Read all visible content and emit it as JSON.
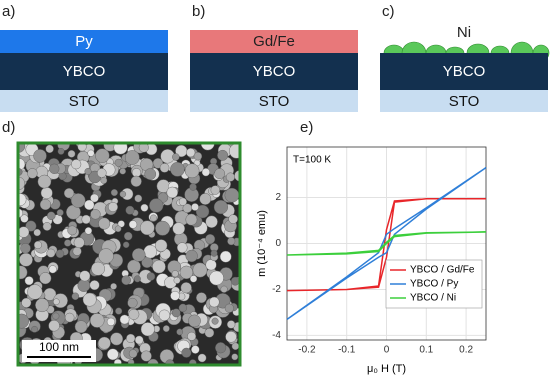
{
  "panels": {
    "a": {
      "label": "a)",
      "layers": [
        "Py",
        "YBCO",
        "STO"
      ]
    },
    "b": {
      "label": "b)",
      "layers": [
        "Gd/Fe",
        "YBCO",
        "STO"
      ]
    },
    "c": {
      "label": "c)",
      "layers": [
        "Ni",
        "YBCO",
        "STO"
      ]
    },
    "d": {
      "label": "d)",
      "scale_bar": "100 nm"
    },
    "e": {
      "label": "e)"
    }
  },
  "chart_data": {
    "type": "line",
    "annotation": "T=100 K",
    "x_label": "μ₀ H (T)",
    "y_label": "m (10⁻⁴ emu)",
    "x": [
      -0.25,
      -0.1,
      -0.02,
      0,
      0.02,
      0.1,
      0.25,
      0.25,
      0.1,
      0.02,
      0,
      -0.02,
      -0.1,
      -0.25
    ],
    "series": [
      {
        "name": "YBCO / Gd/Fe",
        "color": "#e8262a",
        "values": [
          -2.05,
          -2,
          -1.9,
          -0.6,
          1.8,
          1.95,
          1.95,
          1.95,
          1.95,
          1.85,
          0.6,
          -1.85,
          -2,
          -2.05
        ]
      },
      {
        "name": "YBCO / Py",
        "color": "#2f7fd8",
        "values": [
          -3.3,
          -1.5,
          -0.6,
          -0.4,
          0.4,
          1.5,
          3.3,
          3.3,
          1.55,
          0.65,
          0.4,
          -0.4,
          -1.45,
          -3.3
        ]
      },
      {
        "name": "YBCO / Ni",
        "color": "#3ccf3c",
        "values": [
          -0.5,
          -0.45,
          -0.35,
          0,
          0.3,
          0.45,
          0.5,
          0.5,
          0.47,
          0.35,
          0.05,
          -0.3,
          -0.42,
          -0.5
        ]
      }
    ],
    "xlim": [
      -0.25,
      0.25
    ],
    "xticks": [
      -0.2,
      -0.1,
      0,
      0.1,
      0.2
    ],
    "ylim": [
      -4.2,
      4.2
    ],
    "yticks": [
      -4,
      -2,
      0,
      2
    ],
    "grid": true,
    "legend": "lower right"
  }
}
